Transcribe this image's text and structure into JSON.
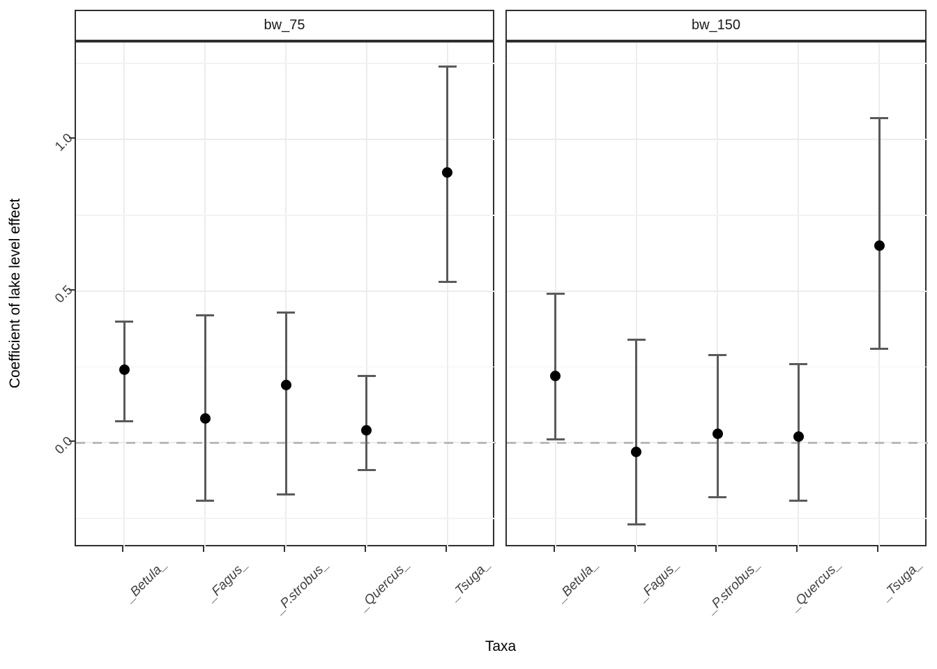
{
  "figure": {
    "background": "#ffffff"
  },
  "axes": {
    "x_title": "Taxa",
    "y_title": "Coefficient of lake level effect"
  },
  "chart_data": {
    "type": "scatter",
    "subtype": "point-with-errorbar, faceted",
    "title": "",
    "xlabel": "Taxa",
    "ylabel": "Coefficient of lake level effect",
    "categories": [
      "_Betula_",
      "_Fagus_",
      "_P.strobus_",
      "_Quercus_",
      "_Tsuga_"
    ],
    "facets": [
      {
        "label": "bw_75",
        "points": [
          {
            "taxon": "_Betula_",
            "value": 0.24,
            "lower": 0.07,
            "upper": 0.4
          },
          {
            "taxon": "_Fagus_",
            "value": 0.08,
            "lower": -0.19,
            "upper": 0.42
          },
          {
            "taxon": "_P.strobus_",
            "value": 0.19,
            "lower": -0.17,
            "upper": 0.43
          },
          {
            "taxon": "_Quercus_",
            "value": 0.04,
            "lower": -0.09,
            "upper": 0.22
          },
          {
            "taxon": "_Tsuga_",
            "value": 0.89,
            "lower": 0.53,
            "upper": 1.24
          }
        ]
      },
      {
        "label": "bw_150",
        "points": [
          {
            "taxon": "_Betula_",
            "value": 0.22,
            "lower": 0.01,
            "upper": 0.49
          },
          {
            "taxon": "_Fagus_",
            "value": -0.03,
            "lower": -0.27,
            "upper": 0.34
          },
          {
            "taxon": "_P.strobus_",
            "value": 0.03,
            "lower": -0.18,
            "upper": 0.29
          },
          {
            "taxon": "_Quercus_",
            "value": 0.02,
            "lower": -0.19,
            "upper": 0.26
          },
          {
            "taxon": "_Tsuga_",
            "value": 0.65,
            "lower": 0.31,
            "upper": 1.07
          }
        ]
      }
    ],
    "y_axis": {
      "range_top": 1.319,
      "range_bottom": -0.346,
      "major_ticks": [
        {
          "value": 0.0,
          "label": "0.0"
        },
        {
          "value": 0.5,
          "label": "0.5"
        },
        {
          "value": 1.0,
          "label": "1.0"
        }
      ],
      "minor_ticks": [
        -0.25,
        0.25,
        0.75,
        1.25
      ]
    },
    "reference_line": {
      "y": 0.0,
      "style": "dashed"
    },
    "legend": "none",
    "grid": "on",
    "colors": {
      "point": "#000000",
      "errorbar": "#5a5a5a",
      "grid_major": "#ececec",
      "grid_minor": "#f3f3f3",
      "zero_dash": "#b9b9b9",
      "panel_border": "#2f2f2f",
      "tick": "#333333",
      "tick_text": "#404040",
      "strip_text": "#1a1a1a"
    }
  }
}
